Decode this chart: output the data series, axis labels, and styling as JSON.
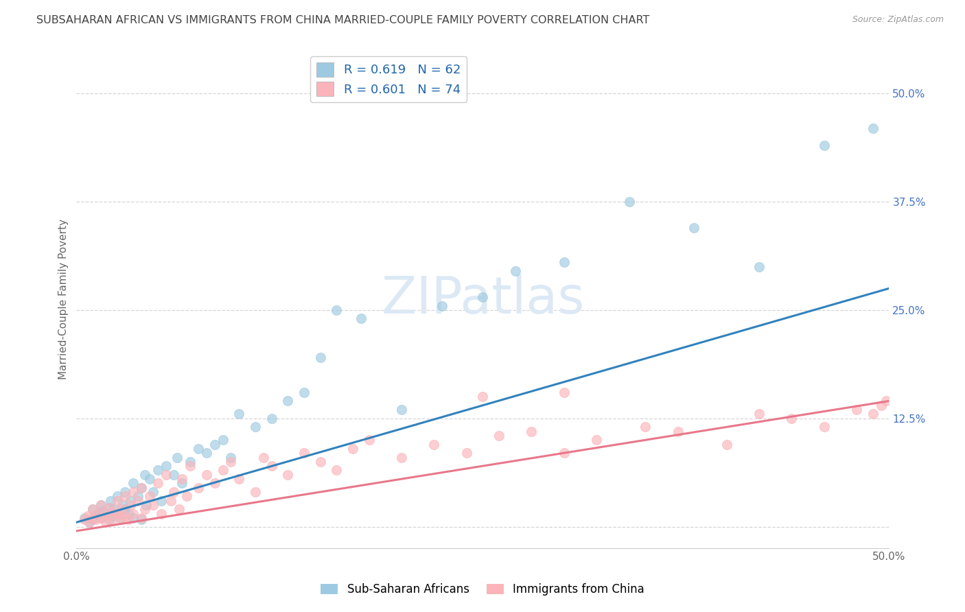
{
  "title": "SUBSAHARAN AFRICAN VS IMMIGRANTS FROM CHINA MARRIED-COUPLE FAMILY POVERTY CORRELATION CHART",
  "source": "Source: ZipAtlas.com",
  "ylabel": "Married-Couple Family Poverty",
  "xlim": [
    0.0,
    0.5
  ],
  "ylim": [
    -0.025,
    0.55
  ],
  "ytick_positions": [
    0.0,
    0.125,
    0.25,
    0.375,
    0.5
  ],
  "ytick_labels": [
    "",
    "12.5%",
    "25.0%",
    "37.5%",
    "50.0%"
  ],
  "legend_r_blue": "R = 0.619",
  "legend_n_blue": "N = 62",
  "legend_r_pink": "R = 0.601",
  "legend_n_pink": "N = 74",
  "legend_label_blue": "Sub-Saharan Africans",
  "legend_label_pink": "Immigrants from China",
  "blue_color": "#9ecae1",
  "pink_color": "#fbb4b9",
  "blue_line_color": "#3182bd",
  "pink_line_color": "#e8778a",
  "background_color": "#ffffff",
  "grid_color": "#cccccc",
  "title_color": "#444444",
  "watermark_color": "#dce9f5",
  "blue_scatter_x": [
    0.005,
    0.008,
    0.01,
    0.01,
    0.012,
    0.013,
    0.015,
    0.015,
    0.016,
    0.018,
    0.02,
    0.02,
    0.021,
    0.022,
    0.023,
    0.025,
    0.025,
    0.027,
    0.028,
    0.03,
    0.03,
    0.032,
    0.033,
    0.035,
    0.035,
    0.038,
    0.04,
    0.04,
    0.042,
    0.043,
    0.045,
    0.047,
    0.05,
    0.052,
    0.055,
    0.06,
    0.062,
    0.065,
    0.07,
    0.075,
    0.08,
    0.085,
    0.09,
    0.095,
    0.1,
    0.11,
    0.12,
    0.13,
    0.14,
    0.15,
    0.16,
    0.175,
    0.2,
    0.225,
    0.25,
    0.27,
    0.3,
    0.34,
    0.38,
    0.42,
    0.46,
    0.49
  ],
  "blue_scatter_y": [
    0.01,
    0.005,
    0.008,
    0.02,
    0.012,
    0.015,
    0.01,
    0.025,
    0.018,
    0.015,
    0.008,
    0.022,
    0.03,
    0.012,
    0.02,
    0.015,
    0.035,
    0.01,
    0.025,
    0.02,
    0.04,
    0.015,
    0.03,
    0.01,
    0.05,
    0.035,
    0.045,
    0.008,
    0.06,
    0.025,
    0.055,
    0.04,
    0.065,
    0.03,
    0.07,
    0.06,
    0.08,
    0.05,
    0.075,
    0.09,
    0.085,
    0.095,
    0.1,
    0.08,
    0.13,
    0.115,
    0.125,
    0.145,
    0.155,
    0.195,
    0.25,
    0.24,
    0.135,
    0.255,
    0.265,
    0.295,
    0.305,
    0.375,
    0.345,
    0.3,
    0.44,
    0.46
  ],
  "pink_scatter_x": [
    0.005,
    0.007,
    0.008,
    0.01,
    0.01,
    0.012,
    0.013,
    0.015,
    0.015,
    0.017,
    0.018,
    0.02,
    0.02,
    0.022,
    0.023,
    0.025,
    0.025,
    0.027,
    0.028,
    0.03,
    0.03,
    0.032,
    0.033,
    0.035,
    0.035,
    0.038,
    0.04,
    0.04,
    0.042,
    0.045,
    0.047,
    0.05,
    0.052,
    0.055,
    0.058,
    0.06,
    0.063,
    0.065,
    0.068,
    0.07,
    0.075,
    0.08,
    0.085,
    0.09,
    0.095,
    0.1,
    0.11,
    0.115,
    0.12,
    0.13,
    0.14,
    0.15,
    0.16,
    0.17,
    0.18,
    0.2,
    0.22,
    0.24,
    0.26,
    0.28,
    0.3,
    0.32,
    0.35,
    0.37,
    0.4,
    0.42,
    0.44,
    0.46,
    0.48,
    0.49,
    0.495,
    0.498,
    0.25,
    0.3
  ],
  "pink_scatter_y": [
    0.008,
    0.012,
    0.005,
    0.01,
    0.02,
    0.008,
    0.015,
    0.01,
    0.025,
    0.015,
    0.005,
    0.012,
    0.022,
    0.008,
    0.018,
    0.015,
    0.03,
    0.01,
    0.02,
    0.012,
    0.035,
    0.008,
    0.025,
    0.015,
    0.04,
    0.03,
    0.01,
    0.045,
    0.02,
    0.035,
    0.025,
    0.05,
    0.015,
    0.06,
    0.03,
    0.04,
    0.02,
    0.055,
    0.035,
    0.07,
    0.045,
    0.06,
    0.05,
    0.065,
    0.075,
    0.055,
    0.04,
    0.08,
    0.07,
    0.06,
    0.085,
    0.075,
    0.065,
    0.09,
    0.1,
    0.08,
    0.095,
    0.085,
    0.105,
    0.11,
    0.085,
    0.1,
    0.115,
    0.11,
    0.095,
    0.13,
    0.125,
    0.115,
    0.135,
    0.13,
    0.14,
    0.145,
    0.15,
    0.155
  ],
  "blue_line_x": [
    0.0,
    0.5
  ],
  "blue_line_y_start": 0.005,
  "blue_line_y_end": 0.275,
  "pink_line_x": [
    0.0,
    0.5
  ],
  "pink_line_y_start": -0.005,
  "pink_line_y_end": 0.145
}
